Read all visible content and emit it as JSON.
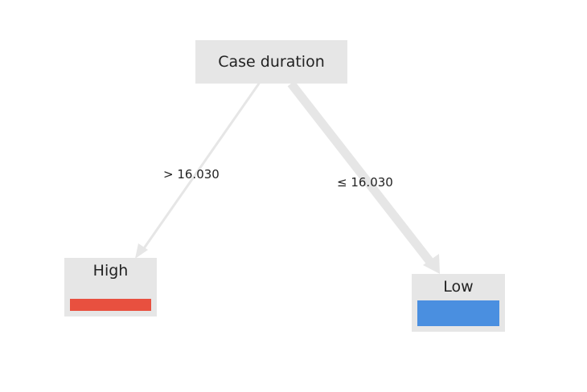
{
  "tree": {
    "root": {
      "label": "Case duration"
    },
    "edges": [
      {
        "label": "> 16.030",
        "target": "High"
      },
      {
        "label": "≤ 16.030",
        "target": "Low"
      }
    ],
    "leaves": [
      {
        "label": "High",
        "color": "#e8503f",
        "share": 0.2
      },
      {
        "label": "Low",
        "color": "#4a8fe0",
        "share": 0.8
      }
    ]
  }
}
